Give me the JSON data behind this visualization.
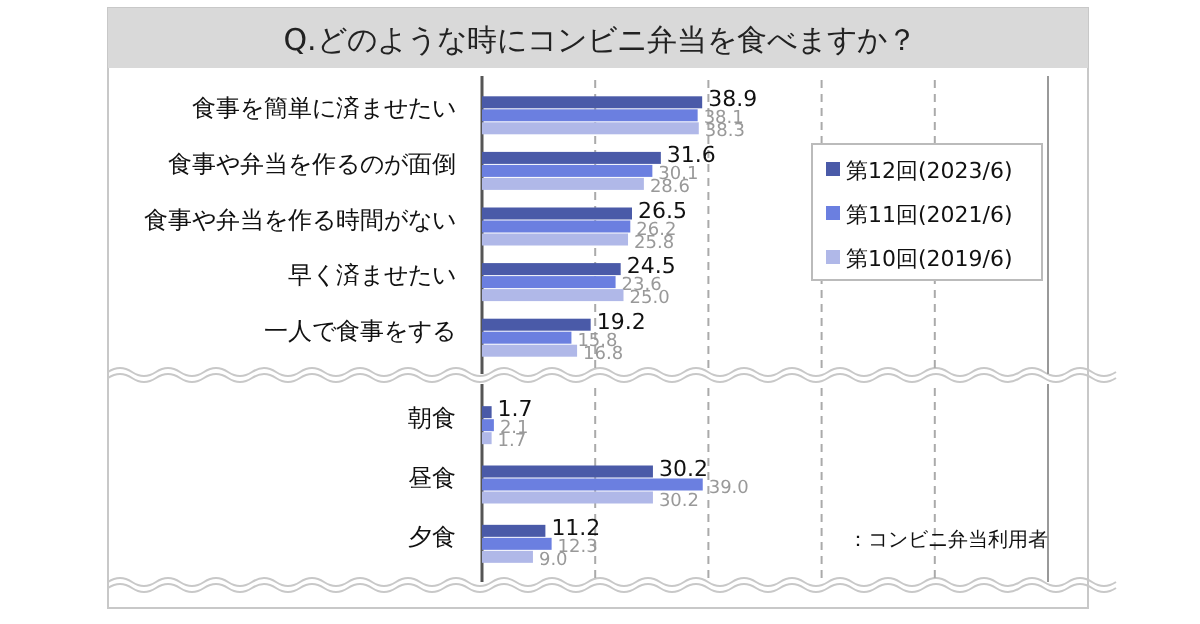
{
  "chart_data": [
    {
      "type": "bar",
      "orientation": "horizontal",
      "title": "Q.どのような時にコンビニ弁当を食べますか？",
      "categories": [
        "食事を簡単に済ませたい",
        "食事や弁当を作るのが面倒",
        "食事や弁当を作る時間がない",
        "早く済ませたい",
        "一人で食事をする"
      ],
      "series": [
        {
          "name": "第12回(2023/6)",
          "color": "#4a5aa8",
          "values": [
            38.9,
            31.6,
            26.5,
            24.5,
            19.2
          ],
          "value_labels": [
            "38.9",
            "31.6",
            "26.5",
            "24.5",
            "19.2"
          ]
        },
        {
          "name": "第11回(2021/6)",
          "color": "#6b7fe0",
          "values": [
            38.1,
            30.1,
            26.2,
            23.6,
            15.8
          ],
          "value_labels": [
            "38.1",
            "30.1",
            "26.2",
            "23.6",
            "15.8"
          ]
        },
        {
          "name": "第10回(2019/6)",
          "color": "#b0b8e8",
          "values": [
            38.3,
            28.6,
            25.8,
            25,
            16.8
          ],
          "value_labels": [
            "38.3",
            "28.6",
            "25.8",
            "25.0",
            "16.8"
          ]
        }
      ],
      "xlim": [
        0,
        100
      ],
      "xticks": [
        {
          "value": 20,
          "label": null
        },
        {
          "value": 40,
          "label": null
        },
        {
          "value": 60,
          "label": null
        },
        {
          "value": 80,
          "label": null
        }
      ],
      "grid": "x",
      "legend": "right",
      "tick_labels": "y"
    },
    {
      "type": "bar",
      "orientation": "horizontal",
      "categories": [
        "朝食",
        "昼食",
        "夕食"
      ],
      "series": [
        {
          "color": "#4a5aa8",
          "values": [
            1.7,
            30.2,
            11.2
          ],
          "value_labels": [
            "1.7",
            "30.2",
            "11.2"
          ]
        },
        {
          "color": "#6b7fe0",
          "values": [
            2.1,
            39,
            12.3
          ],
          "value_labels": [
            "2.1",
            "39.0",
            "12.3"
          ]
        },
        {
          "color": "#b0b8e8",
          "values": [
            1.7,
            30.2,
            9
          ],
          "value_labels": [
            "1.7",
            "30.2",
            "9.0"
          ]
        }
      ],
      "xlim": [
        0,
        100
      ],
      "xticks": [
        {
          "value": 20,
          "label": null
        },
        {
          "value": 40,
          "label": null
        },
        {
          "value": 60,
          "label": null
        },
        {
          "value": 80,
          "label": null
        }
      ],
      "grid": "x",
      "tick_labels": "y",
      "annotations": [
        "：コンビニ弁当利用者"
      ]
    }
  ]
}
